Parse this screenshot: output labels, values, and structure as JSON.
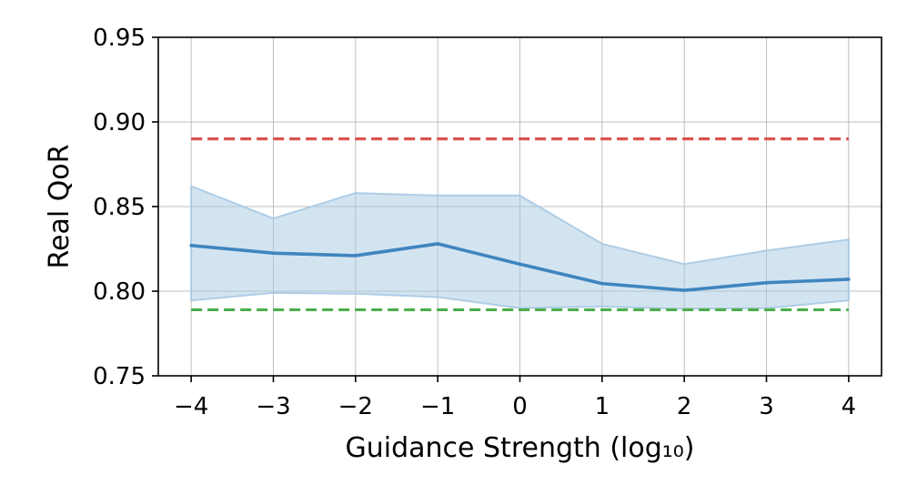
{
  "chart_data": {
    "type": "line",
    "title": "",
    "xlabel": "Guidance Strength (log₁₀)",
    "ylabel": "Real QoR",
    "xlim": [
      -4.4,
      4.4
    ],
    "ylim": [
      0.75,
      0.95
    ],
    "grid": true,
    "x": [
      -4,
      -3,
      -2,
      -1,
      0,
      1,
      2,
      3,
      4
    ],
    "x_tick_labels": [
      "−4",
      "−3",
      "−2",
      "−1",
      "0",
      "1",
      "2",
      "3",
      "4"
    ],
    "y_ticks": [
      0.75,
      0.8,
      0.85,
      0.9,
      0.95
    ],
    "y_tick_labels": [
      "0.75",
      "0.80",
      "0.85",
      "0.90",
      "0.95"
    ],
    "series": [
      {
        "values": [
          0.827,
          0.8225,
          0.821,
          0.828,
          0.816,
          0.8045,
          0.8005,
          0.805,
          0.807
        ],
        "color": "#3f85bf",
        "style": "solid"
      }
    ],
    "band": {
      "upper": [
        0.862,
        0.843,
        0.858,
        0.8565,
        0.8565,
        0.828,
        0.816,
        0.824,
        0.8305
      ],
      "lower": [
        0.7945,
        0.799,
        0.7985,
        0.7965,
        0.79,
        0.791,
        0.7895,
        0.79,
        0.7945
      ],
      "color": "#a8c9e3"
    },
    "reference_lines": [
      {
        "y": 0.89,
        "color": "#d9534f",
        "style": "dashed"
      },
      {
        "y": 0.789,
        "color": "#4cae4c",
        "style": "dashed"
      }
    ]
  }
}
